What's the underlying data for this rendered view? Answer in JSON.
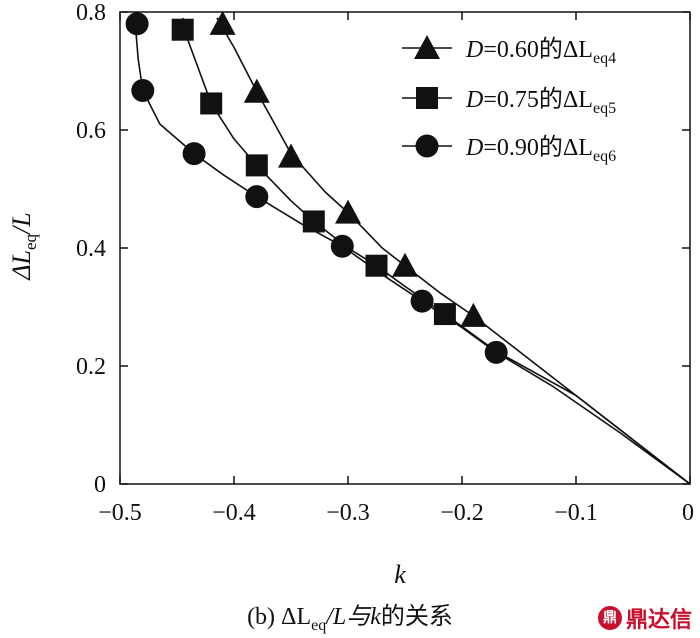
{
  "chart_data": {
    "type": "line",
    "xlabel": "k",
    "ylabel": "ΔLeq/L",
    "xlim": [
      -0.5,
      0
    ],
    "ylim": [
      0,
      0.8
    ],
    "xticks": [
      "−0.5",
      "−0.4",
      "−0.3",
      "−0.2",
      "−0.1",
      "0"
    ],
    "yticks": [
      "0",
      "0.2",
      "0.4",
      "0.6",
      "0.8"
    ],
    "legend_position": "top-right",
    "series": [
      {
        "name": "D=0.60的ΔLeq4",
        "marker": "triangle",
        "points": [
          [
            -0.41,
            0.78
          ],
          [
            -0.38,
            0.665
          ],
          [
            -0.35,
            0.555
          ],
          [
            -0.3,
            0.46
          ],
          [
            -0.25,
            0.37
          ],
          [
            -0.19,
            0.285
          ]
        ],
        "curve": [
          [
            -0.415,
            0.79
          ],
          [
            -0.4,
            0.74
          ],
          [
            -0.38,
            0.665
          ],
          [
            -0.35,
            0.56
          ],
          [
            -0.32,
            0.495
          ],
          [
            -0.3,
            0.46
          ],
          [
            -0.27,
            0.4
          ],
          [
            -0.25,
            0.37
          ],
          [
            -0.22,
            0.325
          ],
          [
            -0.19,
            0.285
          ],
          [
            -0.15,
            0.225
          ],
          [
            -0.1,
            0.15
          ],
          [
            -0.05,
            0.075
          ],
          [
            0.0,
            0.0
          ]
        ]
      },
      {
        "name": "D=0.75的ΔLeq5",
        "marker": "square",
        "points": [
          [
            -0.445,
            0.77
          ],
          [
            -0.42,
            0.645
          ],
          [
            -0.38,
            0.54
          ],
          [
            -0.33,
            0.445
          ],
          [
            -0.275,
            0.37
          ],
          [
            -0.215,
            0.288
          ]
        ],
        "curve": [
          [
            -0.445,
            0.79
          ],
          [
            -0.44,
            0.75
          ],
          [
            -0.42,
            0.645
          ],
          [
            -0.4,
            0.585
          ],
          [
            -0.38,
            0.54
          ],
          [
            -0.35,
            0.48
          ],
          [
            -0.33,
            0.445
          ],
          [
            -0.3,
            0.4
          ],
          [
            -0.275,
            0.37
          ],
          [
            -0.25,
            0.335
          ],
          [
            -0.215,
            0.288
          ],
          [
            -0.17,
            0.225
          ],
          [
            -0.1,
            0.15
          ],
          [
            -0.05,
            0.075
          ],
          [
            0.0,
            0.0
          ]
        ]
      },
      {
        "name": "D=0.90的ΔLeq6",
        "marker": "circle",
        "points": [
          [
            -0.485,
            0.78
          ],
          [
            -0.48,
            0.667
          ],
          [
            -0.435,
            0.56
          ],
          [
            -0.38,
            0.487
          ],
          [
            -0.305,
            0.403
          ],
          [
            -0.235,
            0.31
          ],
          [
            -0.17,
            0.223
          ]
        ],
        "curve": [
          [
            -0.487,
            0.79
          ],
          [
            -0.484,
            0.72
          ],
          [
            -0.48,
            0.667
          ],
          [
            -0.465,
            0.61
          ],
          [
            -0.435,
            0.56
          ],
          [
            -0.41,
            0.525
          ],
          [
            -0.38,
            0.487
          ],
          [
            -0.34,
            0.44
          ],
          [
            -0.305,
            0.403
          ],
          [
            -0.27,
            0.355
          ],
          [
            -0.235,
            0.31
          ],
          [
            -0.2,
            0.265
          ],
          [
            -0.17,
            0.223
          ],
          [
            -0.12,
            0.165
          ],
          [
            -0.06,
            0.085
          ],
          [
            0.0,
            0.0
          ]
        ]
      }
    ],
    "caption": "(b) ΔLeq/L与k的关系"
  },
  "legend": [
    {
      "prefix": "D",
      "mid": "=0.60的ΔL",
      "sub": "eq4"
    },
    {
      "prefix": "D",
      "mid": "=0.75的ΔL",
      "sub": "eq5"
    },
    {
      "prefix": "D",
      "mid": "=0.90的ΔL",
      "sub": "eq6"
    }
  ],
  "caption": {
    "open": "(b) ΔL",
    "sub": "eq",
    "mid": "/L与",
    "k": "k",
    "tail": "的关系"
  },
  "ylabel": {
    "main": "ΔL",
    "sub": "eq",
    "tail": "/L"
  },
  "xlabel": "k",
  "watermark": {
    "logo": "鼎",
    "text": "鼎达信"
  }
}
